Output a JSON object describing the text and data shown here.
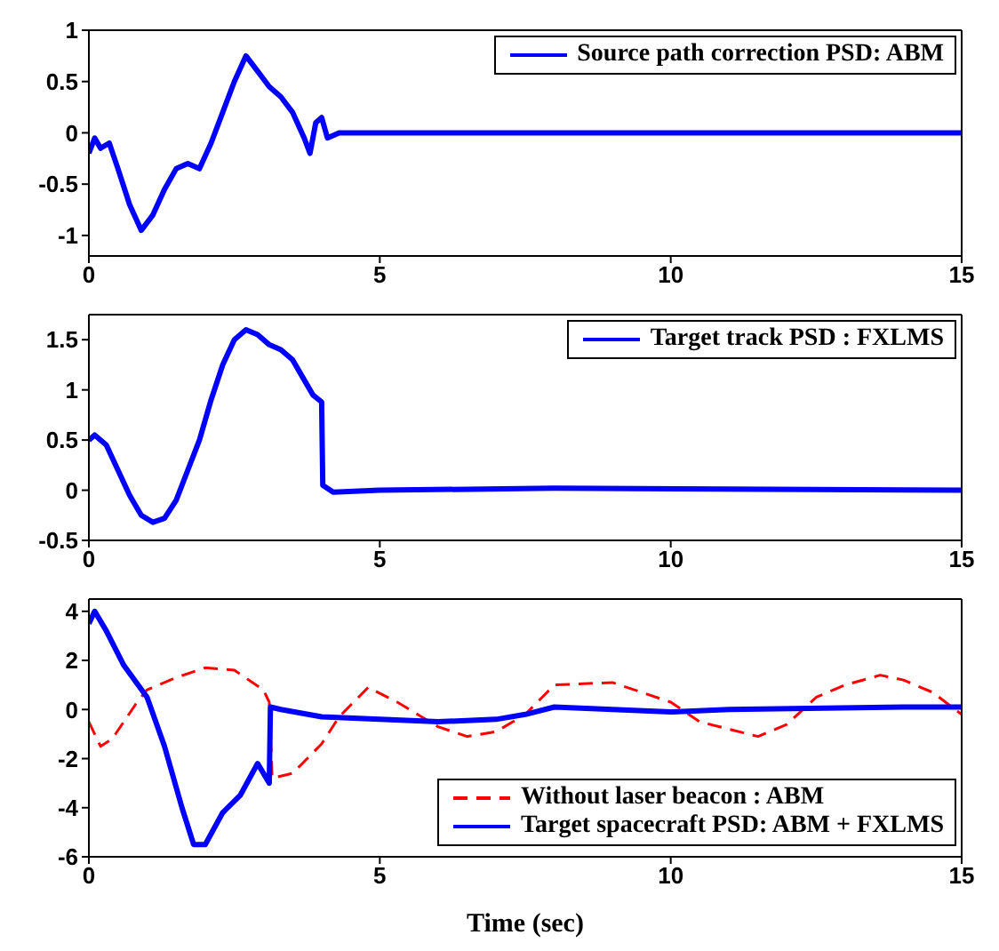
{
  "chart_data": [
    {
      "type": "line",
      "xlim": [
        0,
        15
      ],
      "xticks": [
        0,
        5,
        10,
        15
      ],
      "ylim": [
        -1.2,
        1
      ],
      "yticks": [
        -1,
        -0.5,
        0,
        0.5,
        1
      ],
      "legend": "top right",
      "line_style": "solid",
      "series": [
        {
          "name": "Source path correction PSD: ABM",
          "color": "#0000ff",
          "x": [
            0,
            0.1,
            0.2,
            0.35,
            0.5,
            0.7,
            0.9,
            1.1,
            1.3,
            1.5,
            1.7,
            1.9,
            2.1,
            2.3,
            2.5,
            2.7,
            2.9,
            3.1,
            3.3,
            3.5,
            3.7,
            3.8,
            3.9,
            4.0,
            4.1,
            4.3,
            5,
            6,
            7,
            8,
            9,
            10,
            11,
            12,
            13,
            14,
            15
          ],
          "values": [
            -0.2,
            -0.05,
            -0.15,
            -0.1,
            -0.35,
            -0.7,
            -0.95,
            -0.8,
            -0.55,
            -0.35,
            -0.3,
            -0.35,
            -0.1,
            0.2,
            0.5,
            0.75,
            0.6,
            0.45,
            0.35,
            0.2,
            -0.05,
            -0.2,
            0.1,
            0.15,
            -0.05,
            0,
            0,
            0,
            0,
            0,
            0,
            0,
            0,
            0,
            0,
            0,
            0
          ]
        }
      ]
    },
    {
      "type": "line",
      "xlim": [
        0,
        15
      ],
      "xticks": [
        0,
        5,
        10,
        15
      ],
      "ylim": [
        -0.5,
        1.75
      ],
      "yticks": [
        -0.5,
        0,
        0.5,
        1,
        1.5
      ],
      "legend": "top right",
      "line_style": "solid",
      "series": [
        {
          "name": "Target track PSD : FXLMS",
          "color": "#0000ff",
          "x": [
            0,
            0.1,
            0.3,
            0.5,
            0.7,
            0.9,
            1.1,
            1.3,
            1.5,
            1.7,
            1.9,
            2.1,
            2.3,
            2.5,
            2.7,
            2.9,
            3.1,
            3.3,
            3.5,
            3.7,
            3.85,
            4.0,
            4.02,
            4.2,
            5,
            8,
            15
          ],
          "values": [
            0.5,
            0.55,
            0.45,
            0.2,
            -0.05,
            -0.25,
            -0.32,
            -0.28,
            -0.1,
            0.2,
            0.5,
            0.9,
            1.25,
            1.5,
            1.6,
            1.55,
            1.45,
            1.4,
            1.3,
            1.1,
            0.95,
            0.88,
            0.05,
            -0.02,
            0,
            0.02,
            0
          ]
        }
      ]
    },
    {
      "type": "line",
      "xlabel": "Time (sec)",
      "xlim": [
        0,
        15
      ],
      "xticks": [
        0,
        5,
        10,
        15
      ],
      "ylim": [
        -6,
        4.5
      ],
      "yticks": [
        -6,
        -4,
        -2,
        0,
        2,
        4
      ],
      "legend": "bottom right",
      "series": [
        {
          "name": "Without laser beacon : ABM",
          "color": "#ff0000",
          "line_style": "dashed",
          "x": [
            0,
            0.2,
            0.4,
            0.6,
            0.8,
            1,
            1.5,
            2,
            2.5,
            3,
            3.1,
            3.15,
            3.5,
            4,
            4.3,
            4.8,
            5.3,
            6,
            6.5,
            7,
            7.5,
            8,
            9,
            9.5,
            10,
            10.5,
            11,
            11.5,
            12,
            12.5,
            13,
            13.6,
            14,
            14.5,
            15
          ],
          "values": [
            -0.5,
            -1.5,
            -1.2,
            -0.5,
            0.2,
            0.8,
            1.3,
            1.7,
            1.6,
            0.8,
            0.3,
            -2.8,
            -2.6,
            -1.4,
            -0.3,
            0.9,
            0.3,
            -0.7,
            -1.1,
            -0.9,
            -0.2,
            1,
            1.1,
            0.7,
            0.3,
            -0.5,
            -0.8,
            -1.1,
            -0.6,
            0.5,
            1,
            1.4,
            1.2,
            0.7,
            -0.2
          ]
        },
        {
          "name": "Target spacecraft PSD: ABM + FXLMS",
          "color": "#0000ff",
          "line_style": "solid",
          "x": [
            0,
            0.1,
            0.3,
            0.6,
            1,
            1.3,
            1.6,
            1.8,
            2,
            2.3,
            2.6,
            2.9,
            3.1,
            3.12,
            3.3,
            4,
            5,
            6,
            7,
            7.5,
            8,
            9,
            10,
            11,
            14,
            15
          ],
          "values": [
            3.5,
            4,
            3.2,
            1.8,
            0.5,
            -1.5,
            -4,
            -5.5,
            -5.5,
            -4.2,
            -3.5,
            -2.2,
            -3,
            0.1,
            0,
            -0.3,
            -0.4,
            -0.5,
            -0.4,
            -0.2,
            0.1,
            0,
            -0.1,
            0,
            0.1,
            0.1
          ]
        }
      ]
    }
  ]
}
